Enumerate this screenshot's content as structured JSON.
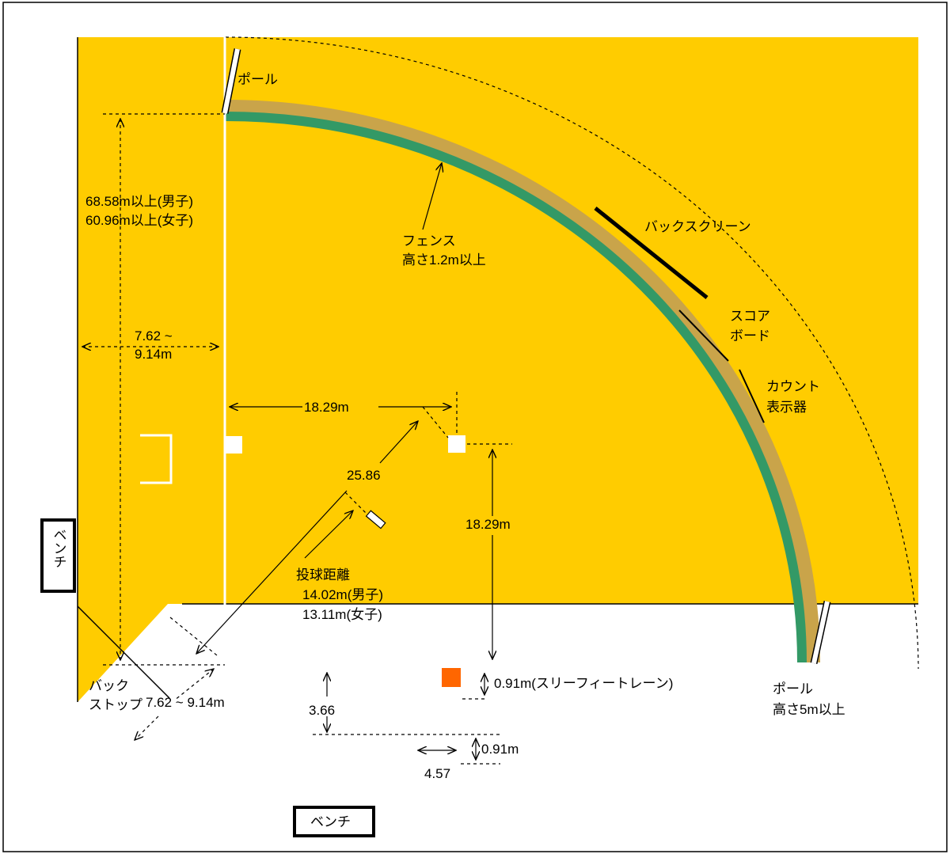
{
  "labels": {
    "pole_top": "ポール",
    "pole_right": "ポール",
    "pole_right_height": "高さ5m以上",
    "foul_distance_men": "68.58m以上(男子)",
    "foul_distance_women": "60.96m以上(女子)",
    "fence_name": "フェンス",
    "fence_height": "高さ1.2m以上",
    "back_screen": "バックスクリーン",
    "score_board_1": "スコア",
    "score_board_2": "ボード",
    "count_display_1": "カウント",
    "count_display_2": "表示器",
    "side_distance_1": "7.62 ~",
    "side_distance_2": "9.14m",
    "base_distance_top": "18.29m",
    "base_distance_right": "18.29m",
    "diagonal_distance": "25.86",
    "pitching_title": "投球距離",
    "pitching_men": "14.02m(男子)",
    "pitching_women": "13.11m(女子)",
    "backstop_1": "バック",
    "backstop_2": "ストップ",
    "backstop_distance": "7.62 ~ 9.14m",
    "three_foot_lane": "0.91m(スリーフィートレーン)",
    "coach_distance": "3.66",
    "coach_box_depth": "0.91m",
    "coach_box_width": "4.57",
    "bench_left": "ベンチ",
    "bench_bottom": "ベンチ"
  },
  "colors": {
    "field": "#FFCC00",
    "fence_outer": "#C9A44A",
    "fence_inner": "#339966",
    "first_base_orange": "#FF6600",
    "lines": "#ffffff",
    "ink": "#000000"
  }
}
